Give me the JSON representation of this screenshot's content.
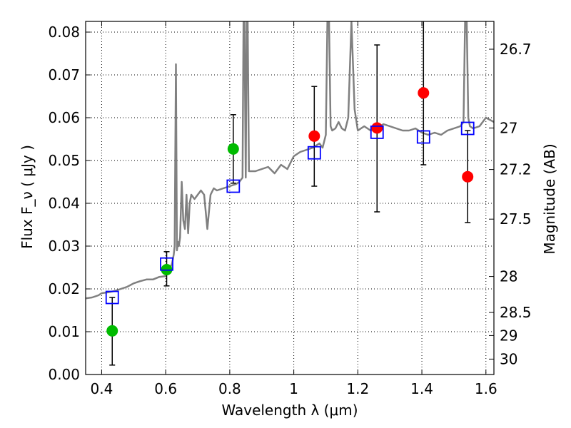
{
  "chart_data": {
    "type": "line",
    "xlabel": "Wavelength  λ (μm)",
    "ylabel": "Flux  F_ν  ( μJy )",
    "ylabel_right": "Magnitude (AB)",
    "xlim": [
      0.35,
      1.625
    ],
    "ylim": [
      0.0,
      0.0825
    ],
    "grid": true,
    "x_ticks": [
      0.4,
      0.6,
      0.8,
      1.0,
      1.2,
      1.4,
      1.6
    ],
    "x_tick_labels": [
      "0.4",
      "0.6",
      "0.8",
      "1",
      "1.2",
      "1.4",
      "1.6"
    ],
    "y_ticks": [
      0.0,
      0.01,
      0.02,
      0.03,
      0.04,
      0.05,
      0.06,
      0.07,
      0.08
    ],
    "y_tick_labels": [
      "0.00",
      "0.01",
      "0.02",
      "0.03",
      "0.04",
      "0.05",
      "0.06",
      "0.07",
      "0.08"
    ],
    "right_axis_ticks": [
      {
        "label": "26.7",
        "flux": 0.076
      },
      {
        "label": "27",
        "flux": 0.0576
      },
      {
        "label": "27.2",
        "flux": 0.0479
      },
      {
        "label": "27.5",
        "flux": 0.0363
      },
      {
        "label": "28",
        "flux": 0.0229
      },
      {
        "label": "28.5",
        "flux": 0.0145
      },
      {
        "label": "29",
        "flux": 0.0091
      },
      {
        "label": "30",
        "flux": 0.0036
      }
    ],
    "colors": {
      "spectrum": "#808080",
      "green": "#00bb00",
      "red": "#ff0000",
      "model_box": "#0000ff",
      "errorbar": "#000000"
    },
    "spectrum": {
      "name": "",
      "x": [
        0.35,
        0.37,
        0.39,
        0.4,
        0.42,
        0.44,
        0.46,
        0.48,
        0.5,
        0.52,
        0.54,
        0.56,
        0.58,
        0.6,
        0.61,
        0.615,
        0.62,
        0.625,
        0.628,
        0.632,
        0.635,
        0.638,
        0.641,
        0.645,
        0.65,
        0.655,
        0.66,
        0.665,
        0.67,
        0.675,
        0.68,
        0.69,
        0.7,
        0.71,
        0.72,
        0.73,
        0.74,
        0.75,
        0.76,
        0.78,
        0.8,
        0.82,
        0.83,
        0.84,
        0.843,
        0.846,
        0.85,
        0.853,
        0.856,
        0.86,
        0.88,
        0.9,
        0.92,
        0.94,
        0.96,
        0.98,
        1.0,
        1.02,
        1.04,
        1.06,
        1.08,
        1.09,
        1.1,
        1.105,
        1.11,
        1.115,
        1.12,
        1.13,
        1.14,
        1.15,
        1.16,
        1.17,
        1.18,
        1.19,
        1.2,
        1.22,
        1.24,
        1.26,
        1.28,
        1.3,
        1.32,
        1.34,
        1.36,
        1.38,
        1.4,
        1.42,
        1.44,
        1.46,
        1.48,
        1.5,
        1.52,
        1.53,
        1.535,
        1.54,
        1.545,
        1.55,
        1.56,
        1.58,
        1.6,
        1.625
      ],
      "y": [
        0.0178,
        0.018,
        0.0185,
        0.019,
        0.0192,
        0.0195,
        0.02,
        0.0205,
        0.0213,
        0.0218,
        0.0222,
        0.0222,
        0.0228,
        0.023,
        0.0255,
        0.025,
        0.026,
        0.028,
        0.03,
        0.0725,
        0.029,
        0.031,
        0.03,
        0.032,
        0.045,
        0.036,
        0.034,
        0.042,
        0.033,
        0.04,
        0.042,
        0.041,
        0.042,
        0.043,
        0.042,
        0.034,
        0.042,
        0.0435,
        0.043,
        0.0435,
        0.044,
        0.0445,
        0.045,
        0.046,
        0.0825,
        0.0825,
        0.046,
        0.0825,
        0.0825,
        0.0475,
        0.0475,
        0.048,
        0.0485,
        0.047,
        0.049,
        0.048,
        0.051,
        0.052,
        0.0525,
        0.053,
        0.054,
        0.053,
        0.056,
        0.0825,
        0.0825,
        0.058,
        0.057,
        0.0575,
        0.059,
        0.0575,
        0.057,
        0.06,
        0.0825,
        0.062,
        0.057,
        0.058,
        0.057,
        0.0575,
        0.0585,
        0.058,
        0.0575,
        0.057,
        0.057,
        0.0575,
        0.0565,
        0.056,
        0.0565,
        0.056,
        0.057,
        0.0575,
        0.058,
        0.059,
        0.0825,
        0.0825,
        0.06,
        0.058,
        0.0575,
        0.058,
        0.06,
        0.059
      ]
    },
    "model_points": {
      "x": [
        0.433,
        0.603,
        0.811,
        1.064,
        1.26,
        1.405,
        1.543
      ],
      "y": [
        0.018,
        0.0258,
        0.044,
        0.0518,
        0.0566,
        0.0555,
        0.0575
      ]
    },
    "observed_points": [
      {
        "x": 0.433,
        "y": 0.0102,
        "err_low": 0.0022,
        "err_high": 0.018,
        "color": "green"
      },
      {
        "x": 0.603,
        "y": 0.0245,
        "err_low": 0.0207,
        "err_high": 0.0287,
        "color": "green"
      },
      {
        "x": 0.811,
        "y": 0.0527,
        "err_low": 0.0447,
        "err_high": 0.0607,
        "color": "green"
      },
      {
        "x": 1.064,
        "y": 0.0557,
        "err_low": 0.044,
        "err_high": 0.0673,
        "color": "red"
      },
      {
        "x": 1.26,
        "y": 0.0576,
        "err_low": 0.038,
        "err_high": 0.077,
        "color": "red"
      },
      {
        "x": 1.405,
        "y": 0.0658,
        "err_low": 0.049,
        "err_high": 0.0825,
        "color": "red"
      },
      {
        "x": 1.543,
        "y": 0.0462,
        "err_low": 0.0355,
        "err_high": 0.057,
        "color": "red"
      }
    ]
  }
}
